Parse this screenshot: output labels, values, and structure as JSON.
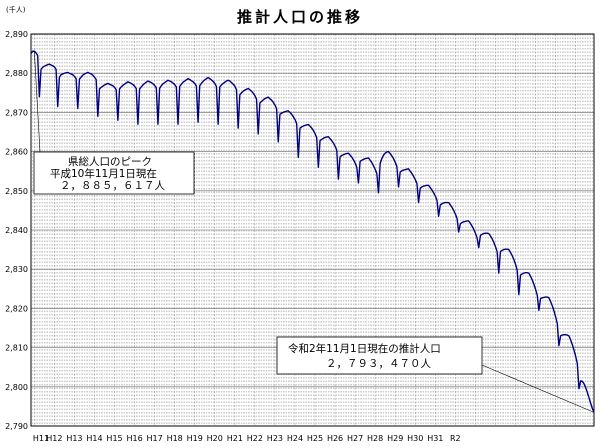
{
  "chart_data": {
    "type": "line",
    "title": "推計人口の推移",
    "y_unit": "(千人)",
    "ylim": [
      2790,
      2890
    ],
    "yticks": [
      "2,890",
      "2,880",
      "2,870",
      "2,860",
      "2,850",
      "2,840",
      "2,830",
      "2,820",
      "2,810",
      "2,800",
      "2,790"
    ],
    "xticks": [
      "H11",
      "H12",
      "H13",
      "H14",
      "H15",
      "H16",
      "H17",
      "H18",
      "H19",
      "H20",
      "H21",
      "H22",
      "H23",
      "H24",
      "H25",
      "H26",
      "H27",
      "H28",
      "H29",
      "H30",
      "H31",
      "R2"
    ],
    "grid": true,
    "legend": "none",
    "line_color": "#00007f",
    "x_start_month": 10,
    "series": [
      {
        "values": [
          2885,
          2885.6,
          2885.617,
          2885.2,
          2884.5,
          2874,
          2881,
          2881.5,
          2881.8,
          2882,
          2882.2,
          2882.3,
          2882.1,
          2881.9,
          2881.6,
          2881,
          2871.5,
          2879,
          2879.6,
          2879.8,
          2880,
          2880.1,
          2880.2,
          2880,
          2879.8,
          2879.6,
          2879.2,
          2878.6,
          2871,
          2878.5,
          2879,
          2879.5,
          2879.8,
          2880,
          2880.2,
          2880,
          2879.8,
          2879.5,
          2879,
          2878.4,
          2869,
          2876,
          2876.4,
          2876.7,
          2877,
          2877.2,
          2877.4,
          2877.2,
          2877,
          2876.8,
          2876.4,
          2875.8,
          2868,
          2876,
          2876.5,
          2876.9,
          2877.2,
          2877.5,
          2877.8,
          2877.6,
          2877.4,
          2877.1,
          2876.7,
          2876.1,
          2867,
          2876,
          2876.5,
          2877,
          2877.4,
          2877.7,
          2878,
          2877.8,
          2877.6,
          2877.3,
          2876.9,
          2876.3,
          2867,
          2876.2,
          2876.8,
          2877.3,
          2877.6,
          2877.9,
          2878.2,
          2878,
          2877.8,
          2877.5,
          2877.1,
          2876.5,
          2867,
          2876.6,
          2877.2,
          2877.7,
          2878,
          2878.3,
          2878.6,
          2878.4,
          2878.1,
          2877.8,
          2877.4,
          2876.7,
          2867.5,
          2876.8,
          2877.4,
          2877.9,
          2878.3,
          2878.6,
          2878.9,
          2878.6,
          2878.3,
          2877.9,
          2877.4,
          2876.6,
          2867,
          2876.5,
          2877,
          2877.4,
          2877.7,
          2878,
          2878.2,
          2878,
          2877.6,
          2877.2,
          2876.7,
          2875.8,
          2866,
          2874.5,
          2875,
          2875.4,
          2875.7,
          2875.9,
          2876.1,
          2875.8,
          2875.4,
          2874.9,
          2874.3,
          2873.4,
          2864.5,
          2872.4,
          2872.8,
          2873.2,
          2873.5,
          2873.7,
          2873.9,
          2873.5,
          2873.1,
          2872.6,
          2871.9,
          2871,
          2862.5,
          2869.5,
          2869.8,
          2870,
          2870.2,
          2870.3,
          2870.4,
          2870,
          2869.5,
          2868.9,
          2868.2,
          2867.2,
          2858.5,
          2866,
          2866.3,
          2866.5,
          2866.7,
          2866.8,
          2866.9,
          2866.5,
          2866,
          2865.4,
          2864.6,
          2863.6,
          2856,
          2862.8,
          2863.1,
          2863.4,
          2863.6,
          2863.7,
          2863.8,
          2863.3,
          2862.8,
          2862.2,
          2861.4,
          2860.4,
          2853,
          2858.7,
          2859,
          2859.2,
          2859.4,
          2859.5,
          2859.6,
          2859.1,
          2858.6,
          2857.9,
          2857.1,
          2856,
          2852,
          2857.5,
          2857.8,
          2858,
          2858.2,
          2858.3,
          2858.4,
          2857.8,
          2857.2,
          2856.4,
          2855.5,
          2854.4,
          2849.5,
          2857,
          2858.2,
          2859.1,
          2859.6,
          2859.9,
          2860,
          2859.5,
          2858.9,
          2858.2,
          2857.3,
          2856.2,
          2851,
          2854.8,
          2855.1,
          2855.3,
          2855.4,
          2855.5,
          2855.6,
          2855,
          2854.4,
          2853.7,
          2852.9,
          2851.9,
          2847,
          2850.7,
          2851,
          2851.2,
          2851.3,
          2851.4,
          2851.4,
          2850.8,
          2850.2,
          2849.5,
          2848.7,
          2847.6,
          2843.5,
          2846.4,
          2846.7,
          2846.9,
          2847,
          2847,
          2847,
          2846.4,
          2845.8,
          2845,
          2844.1,
          2843,
          2839.5,
          2841.6,
          2841.9,
          2842.1,
          2842.2,
          2842.3,
          2842.3,
          2841.7,
          2841,
          2840.2,
          2839.2,
          2838,
          2835.5,
          2838.6,
          2838.9,
          2839.1,
          2839.2,
          2839.2,
          2839.1,
          2838.5,
          2837.8,
          2836.9,
          2835.8,
          2834.5,
          2829,
          2834.5,
          2834.8,
          2835,
          2835.1,
          2835.1,
          2835,
          2834.3,
          2833.5,
          2832.5,
          2831.3,
          2829.8,
          2823.5,
          2828.5,
          2828.8,
          2829,
          2829.1,
          2829.1,
          2829,
          2828.2,
          2827.3,
          2826.2,
          2824.9,
          2823.4,
          2819.5,
          2822.5,
          2822.7,
          2822.8,
          2822.9,
          2822.9,
          2822.7,
          2821.8,
          2820.7,
          2819.4,
          2817.9,
          2816.2,
          2810.5,
          2813,
          2813.2,
          2813.3,
          2813.3,
          2813.2,
          2813,
          2812,
          2810.8,
          2809.4,
          2807.8,
          2806,
          2799.5,
          2801.5,
          2801.4,
          2800.8,
          2799.8,
          2798.6,
          2797.2,
          2795.8,
          2794.5,
          2793.47
        ]
      }
    ],
    "annotations": [
      {
        "lines": [
          "県総人口のピーク",
          "平成10年11月1日現在",
          "２，８８５，６１７人"
        ]
      },
      {
        "lines": [
          "令和2年11月1日現在の推計人口",
          "２，７９３，４７０人"
        ]
      }
    ]
  }
}
